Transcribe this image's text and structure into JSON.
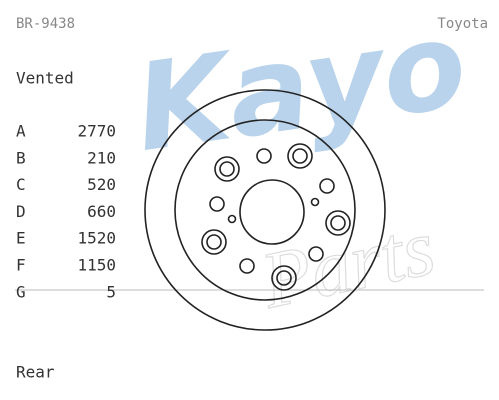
{
  "header": {
    "part_number": "BR-9438",
    "make": "Toyota"
  },
  "disc_type": "Vented",
  "specs": [
    {
      "label": "A",
      "value": "2770"
    },
    {
      "label": "B",
      "value": "210"
    },
    {
      "label": "C",
      "value": "520"
    },
    {
      "label": "D",
      "value": "660"
    },
    {
      "label": "E",
      "value": "1520"
    },
    {
      "label": "F",
      "value": "1150"
    },
    {
      "label": "G",
      "value": "5"
    }
  ],
  "position": "Rear",
  "watermark": {
    "brand": "Kayo",
    "sub": "Parts"
  }
}
